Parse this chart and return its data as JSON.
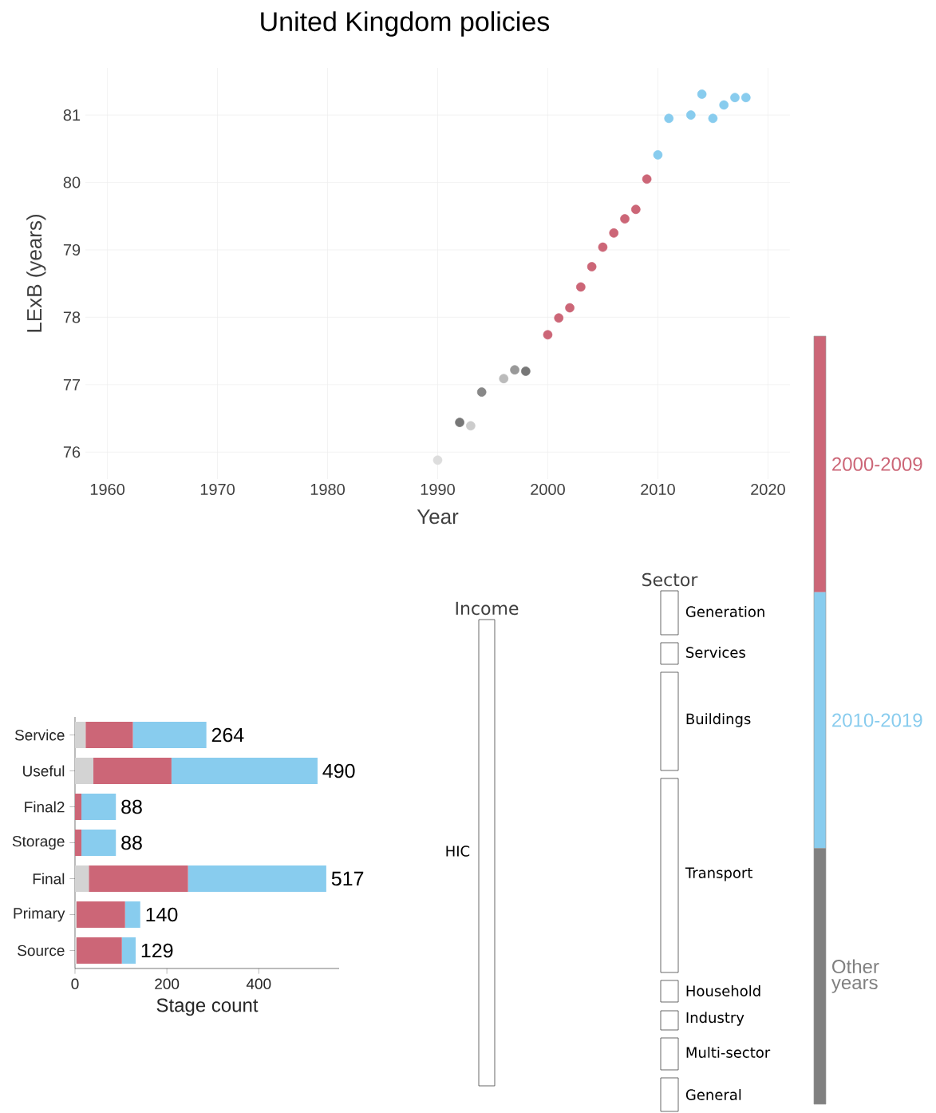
{
  "chart_data": [
    {
      "type": "scatter",
      "title": "United Kingdom policies",
      "xlabel": "Year",
      "ylabel": "LExB (years)",
      "xlim": [
        1958,
        2022
      ],
      "ylim": [
        75.6,
        81.7
      ],
      "xticks": [
        1960,
        1970,
        1980,
        1990,
        2000,
        2010,
        2020
      ],
      "yticks": [
        76,
        77,
        78,
        79,
        80,
        81
      ],
      "grid": true,
      "marker": "circle",
      "legend": "right",
      "series": [
        {
          "name": "2000-2009",
          "color": "#cc6677",
          "x": [
            2000,
            2001,
            2002,
            2003,
            2004,
            2005,
            2006,
            2007,
            2008,
            2009
          ],
          "values": [
            77.74,
            77.99,
            78.14,
            78.45,
            78.75,
            79.04,
            79.25,
            79.46,
            79.6,
            80.05
          ]
        },
        {
          "name": "2010-2019",
          "color": "#88ccee",
          "x": [
            2010,
            2011,
            2013,
            2014,
            2015,
            2016,
            2017,
            2018
          ],
          "values": [
            80.41,
            80.95,
            81.0,
            81.31,
            80.95,
            81.15,
            81.26,
            81.26
          ]
        },
        {
          "name": "Other years",
          "color": "#808080",
          "x": [
            1990,
            1992,
            1993,
            1994,
            1996,
            1997,
            1998
          ],
          "values": [
            75.88,
            76.44,
            76.39,
            76.89,
            77.09,
            77.22,
            77.2
          ],
          "colors": [
            "#dddddd",
            "#777777",
            "#cccccc",
            "#888888",
            "#bbbbbb",
            "#999999",
            "#777777"
          ]
        }
      ]
    },
    {
      "type": "bar",
      "orientation": "horizontal",
      "stacked": true,
      "xlabel": "Stage count",
      "categories": [
        "Service",
        "Useful",
        "Final2",
        "Storage",
        "Final",
        "Primary",
        "Source"
      ],
      "xlim": [
        0,
        575
      ],
      "xticks": [
        0,
        200,
        400
      ],
      "series": [
        {
          "color": "#d3d3d3",
          "values": [
            23,
            40,
            0,
            0,
            30,
            3,
            3
          ]
        },
        {
          "color": "#cc6677",
          "values": [
            103,
            170,
            14,
            14,
            216,
            106,
            99
          ]
        },
        {
          "color": "#88ccee",
          "values": [
            160,
            318,
            75,
            75,
            301,
            33,
            30
          ]
        }
      ],
      "annotations": [
        {
          "text": "264",
          "x": 286,
          "y": "Service"
        },
        {
          "text": "490",
          "x": 528,
          "y": "Useful"
        },
        {
          "text": "88",
          "x": 89,
          "y": "Final2"
        },
        {
          "text": "88",
          "x": 89,
          "y": "Storage"
        },
        {
          "text": "517",
          "x": 547,
          "y": "Final"
        },
        {
          "text": "140",
          "x": 142,
          "y": "Primary"
        },
        {
          "text": "129",
          "x": 132,
          "y": "Source"
        }
      ]
    },
    {
      "type": "other",
      "annotations": [
        "Income",
        "Sector"
      ],
      "categories": [
        "HIC",
        "Generation",
        "Services",
        "Buildings",
        "Transport",
        "Household",
        "Industry",
        "Multi-sector",
        "General"
      ]
    }
  ]
}
